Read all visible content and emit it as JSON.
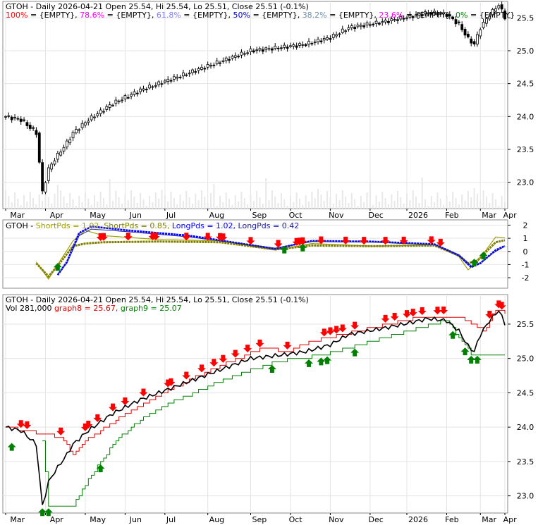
{
  "colors": {
    "fib100": "#ff0000",
    "fib786": "#ff00ff",
    "fib618": "#8080ff",
    "fib50": "#0000cc",
    "fib382": "#7090b0",
    "fib236": "#ff00ff",
    "fib0": "#008000",
    "short_fast": "#a0a000",
    "short_slow": "#808000",
    "long_fast": "#0000ff",
    "long_slow": "#2020a0",
    "graph8": "#dd0000",
    "graph9": "#008000",
    "sell": "#ff0000",
    "buy": "#008000"
  },
  "panel1": {
    "title_prefix": "GTOH - Daily 2026-04-21 Open 25.54, Hi 25.54, Lo 25.51, Close 25.51 (-0.1%)",
    "fib_legend": [
      {
        "label": "100%",
        "text": " = {EMPTY}, ",
        "color": "#ff0000"
      },
      {
        "label": "78.6%",
        "text": " = {EMPTY}, ",
        "color": "#ff00ff"
      },
      {
        "label": "61.8%",
        "text": " = {EMPTY}, ",
        "color": "#8080ff"
      },
      {
        "label": "50%",
        "text": " = {EMPTY}, ",
        "color": "#0000cc"
      },
      {
        "label": "38.2%",
        "text": " = {EMPTY}, ",
        "color": "#7090b0"
      },
      {
        "label": "23.6%",
        "text": " = {EMPTY}, ",
        "color": "#ff00ff"
      },
      {
        "label": "0%",
        "text": " = {EMPTY}",
        "color": "#008000"
      }
    ]
  },
  "panel2": {
    "legend": [
      {
        "text": "GTOH - ",
        "color": "#000000"
      },
      {
        "text": "ShortPds = 1.02, ",
        "color": "#a0a000"
      },
      {
        "text": "ShortPds = 0.85, ",
        "color": "#808000"
      },
      {
        "text": "LongPds = 1.02, ",
        "color": "#0000ff"
      },
      {
        "text": "LongPds = 0.42",
        "color": "#2020a0"
      }
    ]
  },
  "panel3": {
    "title": "GTOH - Daily 2026-04-21 Open 25.54, Hi 25.54, Lo 25.51, Close 25.51 (-0.1%)",
    "legend": [
      {
        "text": "Vol 281,000 ",
        "color": "#000000"
      },
      {
        "text": "graph8 = 25.67, ",
        "color": "#dd0000"
      },
      {
        "text": "graph9 = 25.07",
        "color": "#008000"
      }
    ]
  },
  "chart_data": [
    {
      "type": "candlestick",
      "ylim": [
        22.6,
        25.75
      ],
      "yticks": [
        23.0,
        23.5,
        24.0,
        24.5,
        25.0,
        25.5
      ],
      "xticks": [
        "Mar",
        "Apr",
        "May",
        "Jun",
        "Jul",
        "Aug",
        "Sep",
        "Oct",
        "Nov",
        "Dec",
        "2026",
        "Feb",
        "Mar",
        "Apr"
      ],
      "close_path": [
        {
          "x": 0,
          "y": 24.0
        },
        {
          "x": 5,
          "y": 23.95
        },
        {
          "x": 10,
          "y": 23.75
        },
        {
          "x": 12,
          "y": 22.85
        },
        {
          "x": 14,
          "y": 23.2
        },
        {
          "x": 16,
          "y": 23.35
        },
        {
          "x": 20,
          "y": 23.6
        },
        {
          "x": 22,
          "y": 23.75
        },
        {
          "x": 27,
          "y": 23.95
        },
        {
          "x": 35,
          "y": 24.2
        },
        {
          "x": 44,
          "y": 24.4
        },
        {
          "x": 56,
          "y": 24.6
        },
        {
          "x": 68,
          "y": 24.8
        },
        {
          "x": 80,
          "y": 25.0
        },
        {
          "x": 90,
          "y": 25.05
        },
        {
          "x": 98,
          "y": 25.1
        },
        {
          "x": 106,
          "y": 25.2
        },
        {
          "x": 112,
          "y": 25.35
        },
        {
          "x": 121,
          "y": 25.42
        },
        {
          "x": 130,
          "y": 25.5
        },
        {
          "x": 138,
          "y": 25.58
        },
        {
          "x": 144,
          "y": 25.55
        },
        {
          "x": 148,
          "y": 25.4
        },
        {
          "x": 151,
          "y": 25.18
        },
        {
          "x": 153,
          "y": 25.1
        },
        {
          "x": 155,
          "y": 25.35
        },
        {
          "x": 158,
          "y": 25.55
        },
        {
          "x": 161,
          "y": 25.7
        },
        {
          "x": 163,
          "y": 25.51
        }
      ]
    },
    {
      "type": "line",
      "ylim": [
        -2.8,
        2.4
      ],
      "yticks": [
        2,
        1,
        0,
        -1,
        -2
      ],
      "series": [
        {
          "name": "ShortPds",
          "values": [
            {
              "x": 10,
              "y": -0.8
            },
            {
              "x": 14,
              "y": -2.1
            },
            {
              "x": 17,
              "y": -1.0
            },
            {
              "x": 22,
              "y": 0.8
            },
            {
              "x": 26,
              "y": 1.6
            },
            {
              "x": 32,
              "y": 1.2
            },
            {
              "x": 50,
              "y": 0.9
            },
            {
              "x": 70,
              "y": 0.8
            },
            {
              "x": 88,
              "y": 0.1
            },
            {
              "x": 100,
              "y": 0.6
            },
            {
              "x": 120,
              "y": 0.4
            },
            {
              "x": 140,
              "y": 0.5
            },
            {
              "x": 148,
              "y": -0.4
            },
            {
              "x": 151,
              "y": -1.4
            },
            {
              "x": 154,
              "y": -0.8
            },
            {
              "x": 160,
              "y": 1.1
            },
            {
              "x": 163,
              "y": 1.02
            }
          ]
        },
        {
          "name": "ShortPds",
          "values": [
            {
              "x": 10,
              "y": -0.9
            },
            {
              "x": 14,
              "y": -1.9
            },
            {
              "x": 17,
              "y": -1.1
            },
            {
              "x": 22,
              "y": 0.4
            },
            {
              "x": 26,
              "y": 0.6
            },
            {
              "x": 32,
              "y": 0.7
            },
            {
              "x": 50,
              "y": 0.75
            },
            {
              "x": 70,
              "y": 0.7
            },
            {
              "x": 88,
              "y": 0.15
            },
            {
              "x": 100,
              "y": 0.45
            },
            {
              "x": 120,
              "y": 0.4
            },
            {
              "x": 140,
              "y": 0.45
            },
            {
              "x": 148,
              "y": -0.3
            },
            {
              "x": 151,
              "y": -0.9
            },
            {
              "x": 154,
              "y": -0.7
            },
            {
              "x": 160,
              "y": 0.7
            },
            {
              "x": 163,
              "y": 0.85
            }
          ]
        },
        {
          "name": "LongPds",
          "values": [
            {
              "x": 17,
              "y": -1.8
            },
            {
              "x": 20,
              "y": -0.8
            },
            {
              "x": 24,
              "y": 1.4
            },
            {
              "x": 28,
              "y": 1.9
            },
            {
              "x": 40,
              "y": 1.6
            },
            {
              "x": 60,
              "y": 1.2
            },
            {
              "x": 88,
              "y": 0.2
            },
            {
              "x": 100,
              "y": 0.8
            },
            {
              "x": 120,
              "y": 0.75
            },
            {
              "x": 140,
              "y": 0.55
            },
            {
              "x": 148,
              "y": -0.3
            },
            {
              "x": 152,
              "y": -1.2
            },
            {
              "x": 155,
              "y": -0.9
            },
            {
              "x": 160,
              "y": 0.1
            },
            {
              "x": 163,
              "y": 0.42
            }
          ]
        },
        {
          "name": "LongPds",
          "values": [
            {
              "x": 17,
              "y": -1.7
            },
            {
              "x": 20,
              "y": -0.9
            },
            {
              "x": 24,
              "y": 1.2
            },
            {
              "x": 28,
              "y": 1.7
            },
            {
              "x": 40,
              "y": 1.5
            },
            {
              "x": 60,
              "y": 1.1
            },
            {
              "x": 88,
              "y": 0.25
            },
            {
              "x": 100,
              "y": 0.75
            },
            {
              "x": 120,
              "y": 0.7
            },
            {
              "x": 140,
              "y": 0.5
            },
            {
              "x": 148,
              "y": -0.25
            },
            {
              "x": 152,
              "y": -1.1
            },
            {
              "x": 155,
              "y": -0.85
            },
            {
              "x": 160,
              "y": 0.0
            },
            {
              "x": 163,
              "y": 0.38
            }
          ]
        }
      ],
      "sell_x": [
        31,
        32,
        40,
        48,
        49,
        59,
        66,
        70,
        71,
        80,
        89,
        95,
        96,
        97,
        103,
        111,
        117,
        124,
        130,
        139,
        142
      ],
      "buy_x": [
        17,
        91,
        97,
        153,
        156
      ]
    },
    {
      "type": "line",
      "ylim": [
        22.75,
        25.93
      ],
      "yticks": [
        23.0,
        23.5,
        24.0,
        24.5,
        25.0,
        25.5
      ],
      "xticks": [
        "Mar",
        "Apr",
        "May",
        "Jun",
        "Jul",
        "Aug",
        "Sep",
        "Oct",
        "Nov",
        "Dec",
        "2026",
        "Feb",
        "Mar",
        "Apr"
      ],
      "series": [
        {
          "name": "graph8",
          "values": [
            {
              "x": 0,
              "y": 24.0
            },
            {
              "x": 18,
              "y": 23.85
            },
            {
              "x": 22,
              "y": 23.6
            },
            {
              "x": 26,
              "y": 23.8
            },
            {
              "x": 36,
              "y": 24.1
            },
            {
              "x": 44,
              "y": 24.3
            },
            {
              "x": 56,
              "y": 24.6
            },
            {
              "x": 68,
              "y": 24.85
            },
            {
              "x": 84,
              "y": 25.15
            },
            {
              "x": 92,
              "y": 25.1
            },
            {
              "x": 100,
              "y": 25.25
            },
            {
              "x": 110,
              "y": 25.35
            },
            {
              "x": 120,
              "y": 25.45
            },
            {
              "x": 135,
              "y": 25.6
            },
            {
              "x": 148,
              "y": 25.62
            },
            {
              "x": 156,
              "y": 25.4
            },
            {
              "x": 160,
              "y": 25.7
            },
            {
              "x": 163,
              "y": 25.67
            }
          ]
        },
        {
          "name": "graph9",
          "values": [
            {
              "x": 12,
              "y": 23.8
            },
            {
              "x": 14,
              "y": 22.85
            },
            {
              "x": 22,
              "y": 22.85
            },
            {
              "x": 28,
              "y": 23.3
            },
            {
              "x": 36,
              "y": 23.8
            },
            {
              "x": 44,
              "y": 24.1
            },
            {
              "x": 56,
              "y": 24.4
            },
            {
              "x": 72,
              "y": 24.7
            },
            {
              "x": 88,
              "y": 24.95
            },
            {
              "x": 104,
              "y": 25.05
            },
            {
              "x": 116,
              "y": 25.2
            },
            {
              "x": 128,
              "y": 25.35
            },
            {
              "x": 144,
              "y": 25.55
            },
            {
              "x": 152,
              "y": 25.07
            },
            {
              "x": 163,
              "y": 25.07
            }
          ]
        }
      ],
      "sell_x": [
        5,
        7,
        18,
        26,
        27,
        30,
        35,
        39,
        45,
        53,
        54,
        59,
        64,
        68,
        71,
        75,
        79,
        83,
        92,
        104,
        106,
        108,
        110,
        114,
        124,
        127,
        131,
        133,
        136,
        141,
        143,
        158,
        161,
        162
      ],
      "buy_x": [
        2,
        12,
        14,
        31,
        87,
        99,
        103,
        105,
        114,
        146,
        150,
        152,
        154
      ]
    }
  ]
}
